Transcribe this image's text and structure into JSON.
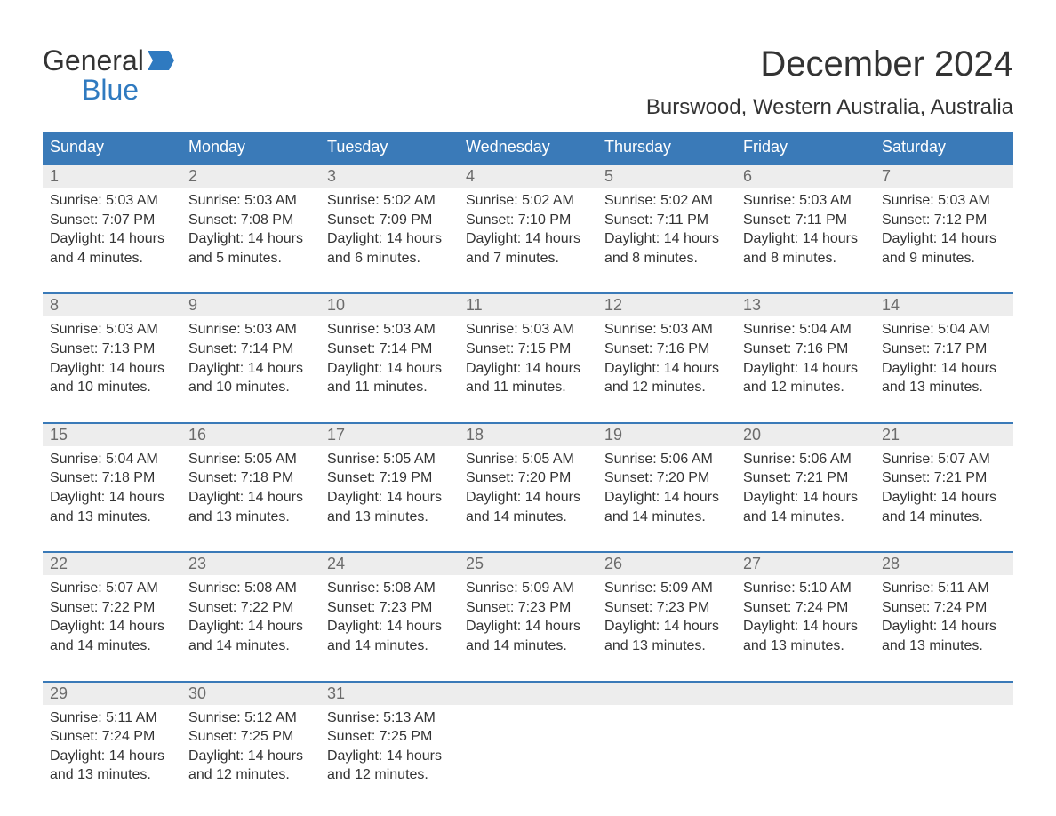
{
  "logo": {
    "word1": "General",
    "word2": "Blue",
    "accent_color": "#2f7ac0",
    "text_color": "#333333"
  },
  "title": "December 2024",
  "location": "Burswood, Western Australia, Australia",
  "colors": {
    "header_bg": "#3a7ab8",
    "header_text": "#ffffff",
    "daynum_bg": "#ededed",
    "daynum_text": "#6b6b6b",
    "body_text": "#333333",
    "week_border": "#3a7ab8",
    "page_bg": "#ffffff"
  },
  "typography": {
    "title_size": 40,
    "location_size": 24,
    "dow_size": 18,
    "daynum_size": 18,
    "detail_size": 16
  },
  "dow": [
    "Sunday",
    "Monday",
    "Tuesday",
    "Wednesday",
    "Thursday",
    "Friday",
    "Saturday"
  ],
  "weeks": [
    [
      {
        "n": "1",
        "sr": "Sunrise: 5:03 AM",
        "ss": "Sunset: 7:07 PM",
        "d1": "Daylight: 14 hours",
        "d2": "and 4 minutes."
      },
      {
        "n": "2",
        "sr": "Sunrise: 5:03 AM",
        "ss": "Sunset: 7:08 PM",
        "d1": "Daylight: 14 hours",
        "d2": "and 5 minutes."
      },
      {
        "n": "3",
        "sr": "Sunrise: 5:02 AM",
        "ss": "Sunset: 7:09 PM",
        "d1": "Daylight: 14 hours",
        "d2": "and 6 minutes."
      },
      {
        "n": "4",
        "sr": "Sunrise: 5:02 AM",
        "ss": "Sunset: 7:10 PM",
        "d1": "Daylight: 14 hours",
        "d2": "and 7 minutes."
      },
      {
        "n": "5",
        "sr": "Sunrise: 5:02 AM",
        "ss": "Sunset: 7:11 PM",
        "d1": "Daylight: 14 hours",
        "d2": "and 8 minutes."
      },
      {
        "n": "6",
        "sr": "Sunrise: 5:03 AM",
        "ss": "Sunset: 7:11 PM",
        "d1": "Daylight: 14 hours",
        "d2": "and 8 minutes."
      },
      {
        "n": "7",
        "sr": "Sunrise: 5:03 AM",
        "ss": "Sunset: 7:12 PM",
        "d1": "Daylight: 14 hours",
        "d2": "and 9 minutes."
      }
    ],
    [
      {
        "n": "8",
        "sr": "Sunrise: 5:03 AM",
        "ss": "Sunset: 7:13 PM",
        "d1": "Daylight: 14 hours",
        "d2": "and 10 minutes."
      },
      {
        "n": "9",
        "sr": "Sunrise: 5:03 AM",
        "ss": "Sunset: 7:14 PM",
        "d1": "Daylight: 14 hours",
        "d2": "and 10 minutes."
      },
      {
        "n": "10",
        "sr": "Sunrise: 5:03 AM",
        "ss": "Sunset: 7:14 PM",
        "d1": "Daylight: 14 hours",
        "d2": "and 11 minutes."
      },
      {
        "n": "11",
        "sr": "Sunrise: 5:03 AM",
        "ss": "Sunset: 7:15 PM",
        "d1": "Daylight: 14 hours",
        "d2": "and 11 minutes."
      },
      {
        "n": "12",
        "sr": "Sunrise: 5:03 AM",
        "ss": "Sunset: 7:16 PM",
        "d1": "Daylight: 14 hours",
        "d2": "and 12 minutes."
      },
      {
        "n": "13",
        "sr": "Sunrise: 5:04 AM",
        "ss": "Sunset: 7:16 PM",
        "d1": "Daylight: 14 hours",
        "d2": "and 12 minutes."
      },
      {
        "n": "14",
        "sr": "Sunrise: 5:04 AM",
        "ss": "Sunset: 7:17 PM",
        "d1": "Daylight: 14 hours",
        "d2": "and 13 minutes."
      }
    ],
    [
      {
        "n": "15",
        "sr": "Sunrise: 5:04 AM",
        "ss": "Sunset: 7:18 PM",
        "d1": "Daylight: 14 hours",
        "d2": "and 13 minutes."
      },
      {
        "n": "16",
        "sr": "Sunrise: 5:05 AM",
        "ss": "Sunset: 7:18 PM",
        "d1": "Daylight: 14 hours",
        "d2": "and 13 minutes."
      },
      {
        "n": "17",
        "sr": "Sunrise: 5:05 AM",
        "ss": "Sunset: 7:19 PM",
        "d1": "Daylight: 14 hours",
        "d2": "and 13 minutes."
      },
      {
        "n": "18",
        "sr": "Sunrise: 5:05 AM",
        "ss": "Sunset: 7:20 PM",
        "d1": "Daylight: 14 hours",
        "d2": "and 14 minutes."
      },
      {
        "n": "19",
        "sr": "Sunrise: 5:06 AM",
        "ss": "Sunset: 7:20 PM",
        "d1": "Daylight: 14 hours",
        "d2": "and 14 minutes."
      },
      {
        "n": "20",
        "sr": "Sunrise: 5:06 AM",
        "ss": "Sunset: 7:21 PM",
        "d1": "Daylight: 14 hours",
        "d2": "and 14 minutes."
      },
      {
        "n": "21",
        "sr": "Sunrise: 5:07 AM",
        "ss": "Sunset: 7:21 PM",
        "d1": "Daylight: 14 hours",
        "d2": "and 14 minutes."
      }
    ],
    [
      {
        "n": "22",
        "sr": "Sunrise: 5:07 AM",
        "ss": "Sunset: 7:22 PM",
        "d1": "Daylight: 14 hours",
        "d2": "and 14 minutes."
      },
      {
        "n": "23",
        "sr": "Sunrise: 5:08 AM",
        "ss": "Sunset: 7:22 PM",
        "d1": "Daylight: 14 hours",
        "d2": "and 14 minutes."
      },
      {
        "n": "24",
        "sr": "Sunrise: 5:08 AM",
        "ss": "Sunset: 7:23 PM",
        "d1": "Daylight: 14 hours",
        "d2": "and 14 minutes."
      },
      {
        "n": "25",
        "sr": "Sunrise: 5:09 AM",
        "ss": "Sunset: 7:23 PM",
        "d1": "Daylight: 14 hours",
        "d2": "and 14 minutes."
      },
      {
        "n": "26",
        "sr": "Sunrise: 5:09 AM",
        "ss": "Sunset: 7:23 PM",
        "d1": "Daylight: 14 hours",
        "d2": "and 13 minutes."
      },
      {
        "n": "27",
        "sr": "Sunrise: 5:10 AM",
        "ss": "Sunset: 7:24 PM",
        "d1": "Daylight: 14 hours",
        "d2": "and 13 minutes."
      },
      {
        "n": "28",
        "sr": "Sunrise: 5:11 AM",
        "ss": "Sunset: 7:24 PM",
        "d1": "Daylight: 14 hours",
        "d2": "and 13 minutes."
      }
    ],
    [
      {
        "n": "29",
        "sr": "Sunrise: 5:11 AM",
        "ss": "Sunset: 7:24 PM",
        "d1": "Daylight: 14 hours",
        "d2": "and 13 minutes."
      },
      {
        "n": "30",
        "sr": "Sunrise: 5:12 AM",
        "ss": "Sunset: 7:25 PM",
        "d1": "Daylight: 14 hours",
        "d2": "and 12 minutes."
      },
      {
        "n": "31",
        "sr": "Sunrise: 5:13 AM",
        "ss": "Sunset: 7:25 PM",
        "d1": "Daylight: 14 hours",
        "d2": "and 12 minutes."
      },
      null,
      null,
      null,
      null
    ]
  ]
}
